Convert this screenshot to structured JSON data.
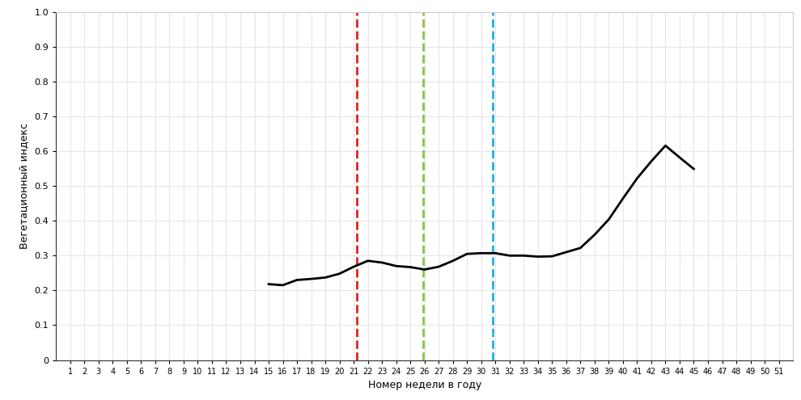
{
  "chart_data": {
    "type": "line",
    "x_label": "Номер недели в году",
    "y_label": "Вегетационный индекс",
    "series": [
      {
        "color": "#000000",
        "line_style": "solid",
        "x": [
          15,
          16,
          17,
          18,
          19,
          20,
          21,
          22,
          23,
          24,
          25,
          26,
          27,
          28,
          29,
          30,
          31,
          32,
          33,
          34,
          35,
          36,
          37,
          38,
          39,
          40,
          41,
          42,
          43,
          44,
          45
        ],
        "values": [
          0.218,
          0.215,
          0.23,
          0.233,
          0.237,
          0.248,
          0.268,
          0.285,
          0.28,
          0.27,
          0.267,
          0.26,
          0.268,
          0.285,
          0.305,
          0.307,
          0.307,
          0.3,
          0.3,
          0.297,
          0.298,
          0.31,
          0.322,
          0.36,
          0.404,
          0.464,
          0.522,
          0.571,
          0.616,
          0.582,
          0.549
        ]
      }
    ],
    "vertical_lines": [
      {
        "x": 21.2,
        "color": "#e02020",
        "line_style": "dashed"
      },
      {
        "x": 25.9,
        "color": "#8bc34a",
        "line_style": "dashed"
      },
      {
        "x": 30.8,
        "color": "#1fb0e0",
        "line_style": "dashed"
      }
    ],
    "xlim": [
      0,
      52
    ],
    "xticks": [
      1,
      2,
      3,
      4,
      5,
      6,
      7,
      8,
      9,
      10,
      11,
      12,
      13,
      14,
      15,
      16,
      17,
      18,
      19,
      20,
      21,
      22,
      23,
      24,
      25,
      26,
      27,
      28,
      29,
      30,
      31,
      32,
      33,
      34,
      35,
      36,
      37,
      38,
      39,
      40,
      41,
      42,
      43,
      44,
      45,
      46,
      47,
      48,
      49,
      50,
      51
    ],
    "ylim": [
      0,
      1.0
    ],
    "yticks": [
      0,
      0.1,
      0.2,
      0.3,
      0.4,
      0.5,
      0.6,
      0.7,
      0.8,
      0.9,
      1.0
    ],
    "grid": true
  }
}
